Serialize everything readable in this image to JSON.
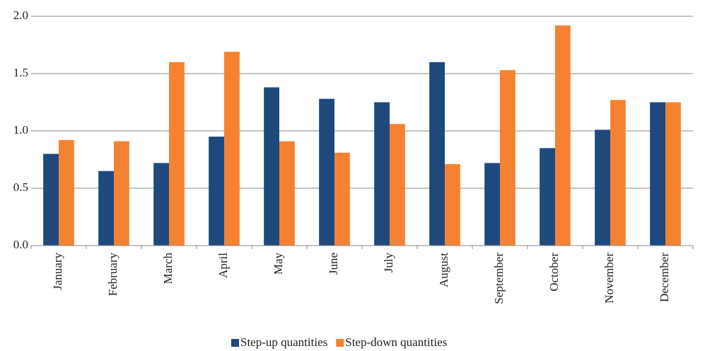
{
  "chart_data": {
    "type": "bar",
    "categories": [
      "January",
      "February",
      "March",
      "April",
      "May",
      "June",
      "July",
      "August",
      "September",
      "October",
      "November",
      "December"
    ],
    "series": [
      {
        "name": "Step-up quantities",
        "color": "#1f497d",
        "values": [
          0.8,
          0.65,
          0.72,
          0.95,
          1.38,
          1.28,
          1.25,
          1.6,
          0.72,
          0.85,
          1.01,
          1.25
        ]
      },
      {
        "name": "Step-down quantities",
        "color": "#f58232",
        "values": [
          0.92,
          0.91,
          1.6,
          1.69,
          0.91,
          0.81,
          1.06,
          0.71,
          1.53,
          1.92,
          1.27,
          1.25
        ]
      }
    ],
    "ylim": [
      0,
      2
    ],
    "yticks": [
      {
        "value": 0,
        "label": "0.0"
      },
      0.5,
      {
        "value": 1,
        "label": "1.0"
      },
      1.5,
      {
        "value": 2,
        "label": "2.0"
      }
    ],
    "grid": true,
    "legend": "bottom"
  }
}
